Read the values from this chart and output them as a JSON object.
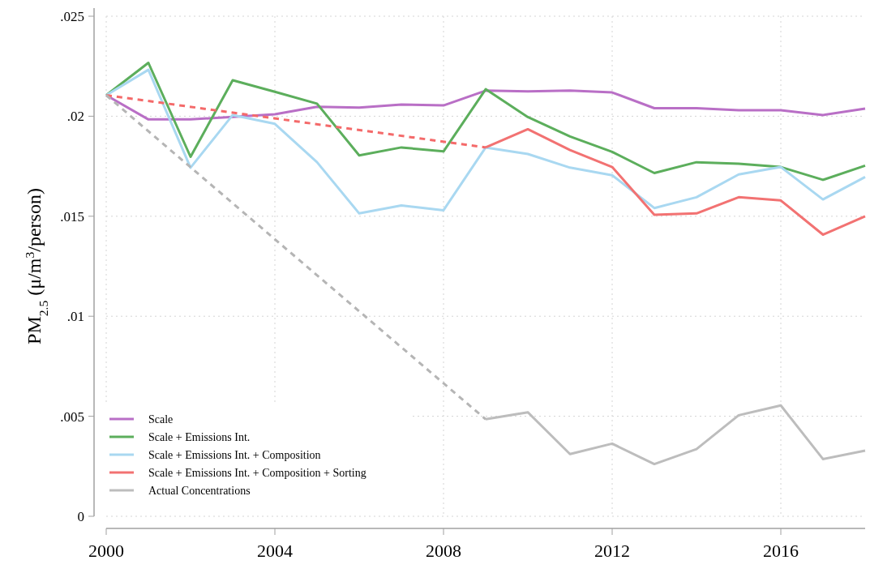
{
  "chart_data": {
    "type": "line",
    "ylabel": "PM$_{2.5}$ (μ/m$^{3}$/person)",
    "x": [
      2000,
      2001,
      2002,
      2003,
      2004,
      2005,
      2006,
      2007,
      2008,
      2009,
      2010,
      2011,
      2012,
      2013,
      2014,
      2015,
      2016,
      2017,
      2018
    ],
    "xlim": [
      2000,
      2018
    ],
    "xticks": [
      2000,
      2004,
      2008,
      2012,
      2016
    ],
    "ylim": [
      0,
      0.025
    ],
    "yticks": [
      0,
      {
        "value": 0.005,
        "label": ".005"
      },
      {
        "value": 0.01,
        "label": ".01"
      },
      {
        "value": 0.015,
        "label": ".015"
      },
      {
        "value": 0.02,
        "label": ".02"
      },
      {
        "value": 0.025,
        "label": ".025"
      }
    ],
    "grid": true,
    "legend": "bottom left",
    "line_style": "solid",
    "marker": "none",
    "series": [
      {
        "name": "Scale",
        "color": "#b96fc6",
        "values": [
          0.02105,
          0.01984,
          0.01984,
          0.01997,
          0.0201,
          0.02047,
          0.02043,
          0.02058,
          0.02054,
          0.02128,
          0.02124,
          0.02128,
          0.02119,
          0.0204,
          0.0204,
          0.0203,
          0.0203,
          0.02006,
          0.02038
        ]
      },
      {
        "name": "Scale + Emissions Int.",
        "color": "#5cae5c",
        "values": [
          0.02105,
          0.02267,
          0.01797,
          0.0218,
          0.02122,
          0.02063,
          0.01804,
          0.01844,
          0.01824,
          0.02135,
          0.01996,
          0.01899,
          0.01822,
          0.01716,
          0.0177,
          0.01763,
          0.01746,
          0.01682,
          0.01753
        ]
      },
      {
        "name": "Scale + Emissions Int. + Composition",
        "color": "#a9d8f1",
        "values": [
          0.02105,
          0.02232,
          0.01743,
          0.02006,
          0.01962,
          0.0177,
          0.01514,
          0.01554,
          0.0153,
          0.01844,
          0.01811,
          0.01743,
          0.01705,
          0.01541,
          0.01595,
          0.01709,
          0.01746,
          0.01584,
          0.01696
        ]
      },
      {
        "name": "Scale + Emissions Int. + Composition + Sorting",
        "color": "#f27272",
        "values": [
          null,
          null,
          null,
          null,
          null,
          null,
          null,
          null,
          null,
          0.01844,
          0.01935,
          0.01831,
          0.01746,
          0.01507,
          0.01514,
          0.01595,
          0.01579,
          0.01408,
          0.015
        ]
      },
      {
        "name": "Actual Concentrations",
        "color": "#bdbdbd",
        "values": [
          null,
          null,
          null,
          null,
          null,
          null,
          null,
          null,
          null,
          0.00485,
          0.0052,
          0.00311,
          0.00363,
          0.00261,
          0.00336,
          0.00505,
          0.00554,
          0.00286,
          0.00328
        ]
      },
      {
        "color": "#f46a6a",
        "values": [
          0.02105,
          null,
          null,
          null,
          null,
          null,
          null,
          null,
          null,
          0.01844,
          null,
          null,
          null,
          null,
          null,
          null,
          null,
          null,
          null
        ],
        "line_style": "dashed"
      },
      {
        "color": "#b5b5b5",
        "values": [
          0.02105,
          null,
          null,
          null,
          null,
          null,
          null,
          null,
          null,
          0.00485,
          null,
          null,
          null,
          null,
          null,
          null,
          null,
          null,
          null
        ],
        "line_style": "dashed"
      }
    ]
  }
}
